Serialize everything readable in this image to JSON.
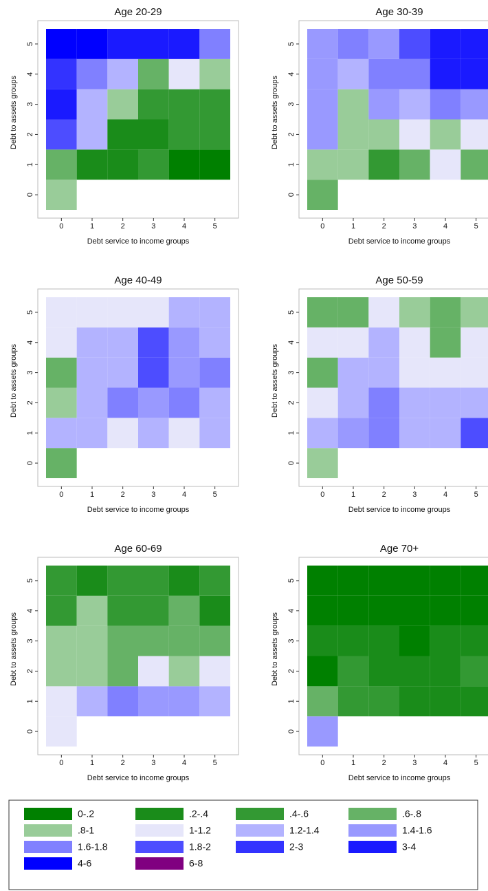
{
  "chart_data": [
    {
      "type": "heatmap",
      "title": "Age 20-29",
      "x_label": "Debt service to income groups",
      "y_label": "Debt to assets groups",
      "xlim": [
        -0.5,
        5.5
      ],
      "ylim": [
        -0.5,
        5.5
      ],
      "xticks": [
        0,
        1,
        2,
        3,
        4,
        5
      ],
      "yticks": [
        0,
        1,
        2,
        3,
        4,
        5
      ],
      "values": [
        [
          0.9,
          null,
          null,
          null,
          null,
          null
        ],
        [
          0.7,
          0.3,
          0.3,
          0.5,
          0.1,
          0.1
        ],
        [
          1.9,
          1.3,
          0.3,
          0.3,
          0.5,
          0.5
        ],
        [
          3.5,
          1.3,
          0.9,
          0.5,
          0.5,
          0.5
        ],
        [
          2.5,
          1.7,
          1.3,
          0.7,
          1.1,
          0.9
        ],
        [
          5,
          5,
          3.5,
          3.5,
          3.5,
          1.7
        ]
      ]
    },
    {
      "type": "heatmap",
      "title": "Age 30-39",
      "x_label": "Debt service to income groups",
      "y_label": "Debt to assets groups",
      "xlim": [
        -0.5,
        5.5
      ],
      "ylim": [
        -0.5,
        5.5
      ],
      "xticks": [
        0,
        1,
        2,
        3,
        4,
        5
      ],
      "yticks": [
        0,
        1,
        2,
        3,
        4,
        5
      ],
      "values": [
        [
          0.7,
          null,
          null,
          null,
          null,
          null
        ],
        [
          0.9,
          0.9,
          0.5,
          0.7,
          1.1,
          0.7
        ],
        [
          1.5,
          0.9,
          0.9,
          1.1,
          0.9,
          1.1
        ],
        [
          1.5,
          0.9,
          1.5,
          1.3,
          1.7,
          1.5
        ],
        [
          1.5,
          1.3,
          1.7,
          1.7,
          3.5,
          3.5
        ],
        [
          1.5,
          1.7,
          1.5,
          1.9,
          3.5,
          3.5
        ]
      ]
    },
    {
      "type": "heatmap",
      "title": "Age 40-49",
      "x_label": "Debt service to income groups",
      "y_label": "Debt to assets groups",
      "xlim": [
        -0.5,
        5.5
      ],
      "ylim": [
        -0.5,
        5.5
      ],
      "xticks": [
        0,
        1,
        2,
        3,
        4,
        5
      ],
      "yticks": [
        0,
        1,
        2,
        3,
        4,
        5
      ],
      "values": [
        [
          0.7,
          null,
          null,
          null,
          null,
          null
        ],
        [
          1.3,
          1.3,
          1.1,
          1.3,
          1.1,
          1.3
        ],
        [
          0.9,
          1.3,
          1.7,
          1.5,
          1.7,
          1.3
        ],
        [
          0.7,
          1.3,
          1.3,
          1.9,
          1.5,
          1.7
        ],
        [
          1.1,
          1.3,
          1.3,
          1.9,
          1.5,
          1.3
        ],
        [
          1.1,
          1.1,
          1.1,
          1.1,
          1.3,
          1.3
        ]
      ]
    },
    {
      "type": "heatmap",
      "title": "Age 50-59",
      "x_label": "Debt service to income groups",
      "y_label": "Debt to assets groups",
      "xlim": [
        -0.5,
        5.5
      ],
      "ylim": [
        -0.5,
        5.5
      ],
      "xticks": [
        0,
        1,
        2,
        3,
        4,
        5
      ],
      "yticks": [
        0,
        1,
        2,
        3,
        4,
        5
      ],
      "values": [
        [
          0.9,
          null,
          null,
          null,
          null,
          null
        ],
        [
          1.3,
          1.5,
          1.7,
          1.3,
          1.3,
          1.9
        ],
        [
          1.1,
          1.3,
          1.7,
          1.3,
          1.3,
          1.3
        ],
        [
          0.7,
          1.3,
          1.3,
          1.1,
          1.1,
          1.1
        ],
        [
          1.1,
          1.1,
          1.3,
          1.1,
          0.7,
          1.1
        ],
        [
          0.7,
          0.7,
          1.1,
          0.9,
          0.7,
          0.9
        ]
      ]
    },
    {
      "type": "heatmap",
      "title": "Age 60-69",
      "x_label": "Debt service to income groups",
      "y_label": "Debt to assets groups",
      "xlim": [
        -0.5,
        5.5
      ],
      "ylim": [
        -0.5,
        5.5
      ],
      "xticks": [
        0,
        1,
        2,
        3,
        4,
        5
      ],
      "yticks": [
        0,
        1,
        2,
        3,
        4,
        5
      ],
      "values": [
        [
          1.1,
          null,
          null,
          null,
          null,
          null
        ],
        [
          1.1,
          1.3,
          1.7,
          1.5,
          1.5,
          1.3
        ],
        [
          0.9,
          0.9,
          0.7,
          1.1,
          0.9,
          1.1
        ],
        [
          0.9,
          0.9,
          0.7,
          0.7,
          0.7,
          0.7
        ],
        [
          0.5,
          0.9,
          0.5,
          0.5,
          0.7,
          0.3
        ],
        [
          0.5,
          0.3,
          0.5,
          0.5,
          0.3,
          0.5
        ]
      ]
    },
    {
      "type": "heatmap",
      "title": "Age 70+",
      "x_label": "Debt service to income groups",
      "y_label": "Debt to assets groups",
      "xlim": [
        -0.5,
        5.5
      ],
      "ylim": [
        -0.5,
        5.5
      ],
      "xticks": [
        0,
        1,
        2,
        3,
        4,
        5
      ],
      "yticks": [
        0,
        1,
        2,
        3,
        4,
        5
      ],
      "values": [
        [
          1.5,
          null,
          null,
          null,
          null,
          null
        ],
        [
          0.7,
          0.5,
          0.5,
          0.3,
          0.3,
          0.3
        ],
        [
          0.1,
          0.5,
          0.3,
          0.3,
          0.3,
          0.5
        ],
        [
          0.3,
          0.3,
          0.3,
          0.1,
          0.3,
          0.3
        ],
        [
          0.1,
          0.1,
          0.1,
          0.1,
          0.1,
          0.1
        ],
        [
          0.1,
          0.1,
          0.1,
          0.1,
          0.1,
          0.1
        ]
      ]
    }
  ],
  "legend": {
    "bins": [
      0,
      0.2,
      0.4,
      0.6,
      0.8,
      1,
      1.2,
      1.4,
      1.6,
      1.8,
      2,
      3,
      4,
      6,
      8
    ],
    "labels": [
      "0-.2",
      ".2-.4",
      ".4-.6",
      ".6-.8",
      ".8-1",
      "1-1.2",
      "1.2-1.4",
      "1.4-1.6",
      "1.6-1.8",
      "1.8-2",
      "2-3",
      "3-4",
      "4-6",
      "6-8"
    ],
    "colors": [
      "#008000",
      "#1a8c1a",
      "#339933",
      "#66b266",
      "#99cc99",
      "#e6e6fa",
      "#b3b3ff",
      "#9999ff",
      "#8080ff",
      "#4d4dff",
      "#3333ff",
      "#1a1aff",
      "#0000ff",
      "#800080"
    ]
  }
}
